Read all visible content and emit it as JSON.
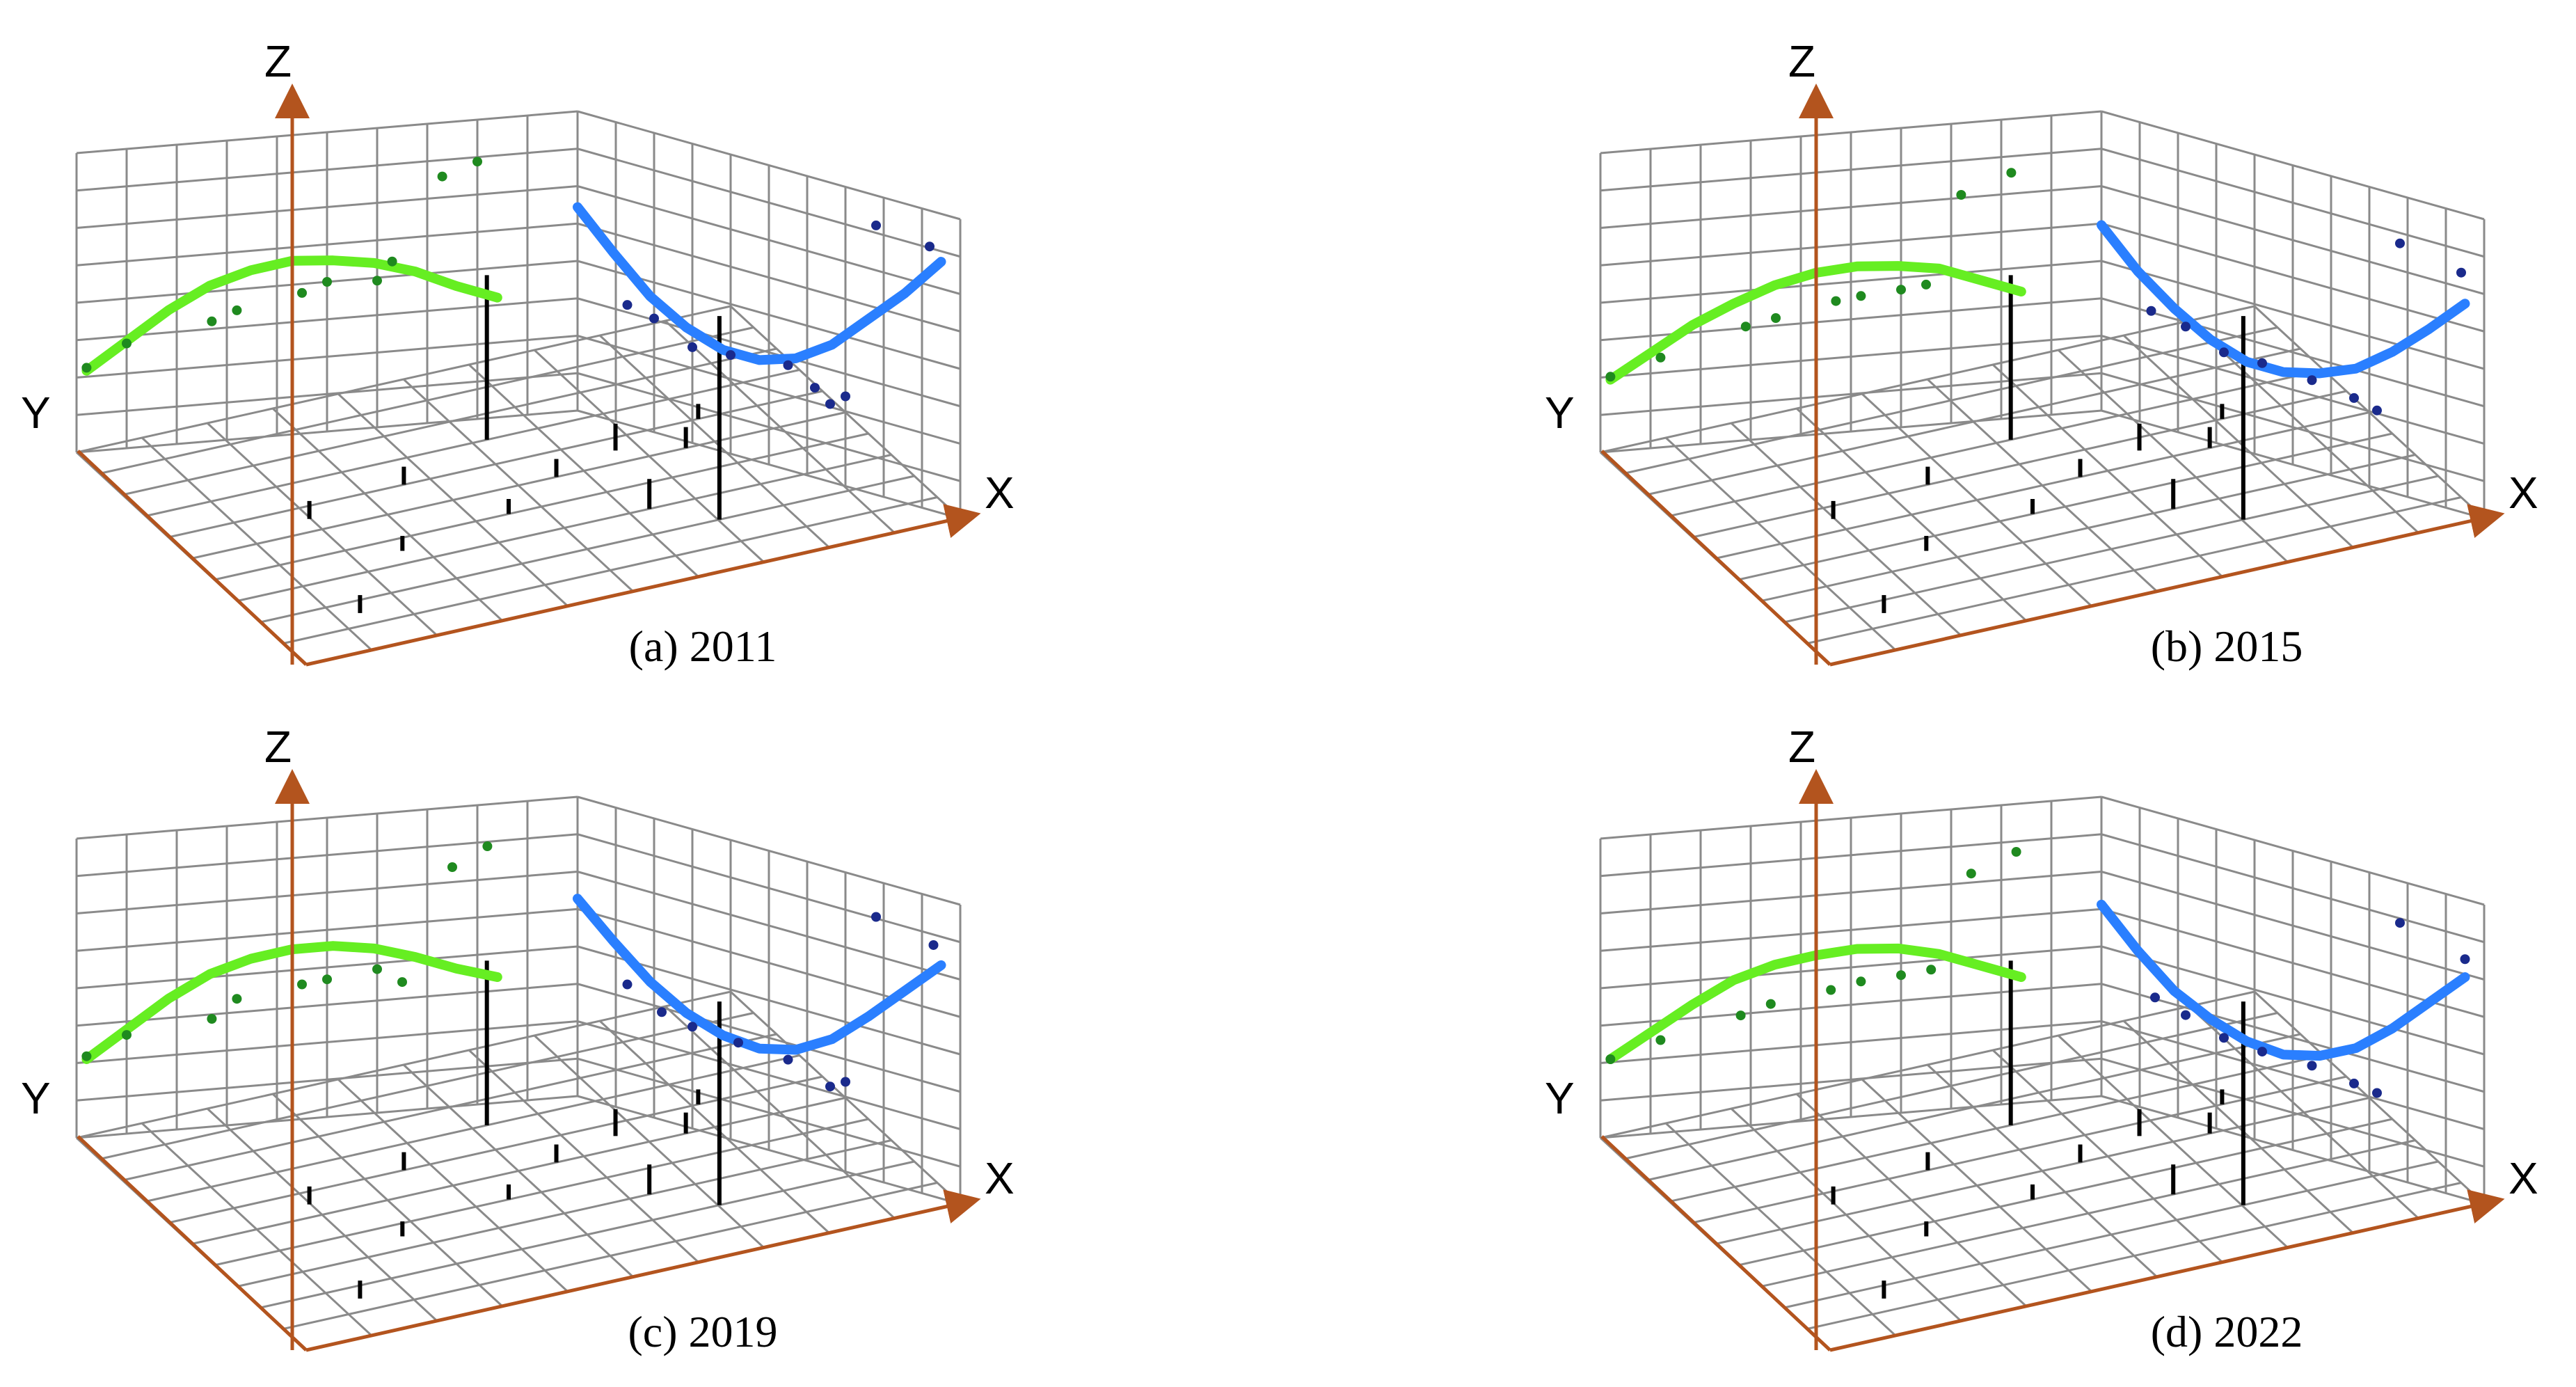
{
  "colors": {
    "grid": "#8a8a8a",
    "axis": "#b3541e",
    "green_curve": "#66ee22",
    "blue_curve": "#2a7fff",
    "green_dot": "#1f8a1f",
    "blue_dot": "#1a2a8c",
    "stem": "#000000"
  },
  "axis_labels": {
    "x": "X",
    "y": "Y",
    "z": "Z"
  },
  "chart_data": [
    {
      "type": "scatter",
      "title": "(a) 2011",
      "series": [
        {
          "values": [
            [
              0.0,
              0.27
            ],
            [
              0.1,
              0.36
            ],
            [
              0.2,
              0.45
            ],
            [
              0.3,
              0.52
            ],
            [
              0.4,
              0.56
            ],
            [
              0.5,
              0.58
            ],
            [
              0.6,
              0.57
            ],
            [
              0.7,
              0.55
            ],
            [
              0.8,
              0.51
            ],
            [
              0.9,
              0.45
            ],
            [
              1.0,
              0.4
            ]
          ]
        },
        {
          "values": [
            [
              0.0,
              0.68
            ],
            [
              0.1,
              0.56
            ],
            [
              0.2,
              0.45
            ],
            [
              0.3,
              0.38
            ],
            [
              0.4,
              0.34
            ],
            [
              0.5,
              0.34
            ],
            [
              0.6,
              0.38
            ],
            [
              0.7,
              0.46
            ],
            [
              0.8,
              0.58
            ],
            [
              0.9,
              0.7
            ],
            [
              1.0,
              0.84
            ]
          ]
        }
      ],
      "points_green": [
        [
          0.02,
          0.28
        ],
        [
          0.1,
          0.35
        ],
        [
          0.27,
          0.4
        ],
        [
          0.32,
          0.43
        ],
        [
          0.45,
          0.47
        ],
        [
          0.5,
          0.5
        ],
        [
          0.6,
          0.49
        ],
        [
          0.63,
          0.55
        ],
        [
          0.73,
          0.82
        ],
        [
          0.8,
          0.86
        ]
      ],
      "points_blue": [
        [
          0.13,
          0.4
        ],
        [
          0.2,
          0.38
        ],
        [
          0.3,
          0.32
        ],
        [
          0.4,
          0.33
        ],
        [
          0.55,
          0.35
        ],
        [
          0.62,
          0.3
        ],
        [
          0.66,
          0.26
        ],
        [
          0.7,
          0.3
        ],
        [
          0.78,
          0.9
        ],
        [
          0.92,
          0.88
        ]
      ]
    },
    {
      "type": "scatter",
      "title": "(b) 2015",
      "series": [
        {
          "values": [
            [
              0.0,
              0.24
            ],
            [
              0.1,
              0.32
            ],
            [
              0.2,
              0.4
            ],
            [
              0.3,
              0.46
            ],
            [
              0.4,
              0.51
            ],
            [
              0.5,
              0.54
            ],
            [
              0.6,
              0.55
            ],
            [
              0.7,
              0.54
            ],
            [
              0.8,
              0.52
            ],
            [
              0.9,
              0.47
            ],
            [
              1.0,
              0.42
            ]
          ]
        },
        {
          "values": [
            [
              0.0,
              0.62
            ],
            [
              0.1,
              0.5
            ],
            [
              0.2,
              0.41
            ],
            [
              0.3,
              0.34
            ],
            [
              0.4,
              0.3
            ],
            [
              0.5,
              0.3
            ],
            [
              0.6,
              0.33
            ],
            [
              0.7,
              0.38
            ],
            [
              0.8,
              0.47
            ],
            [
              0.9,
              0.58
            ],
            [
              1.0,
              0.7
            ]
          ]
        }
      ],
      "points_green": [
        [
          0.02,
          0.25
        ],
        [
          0.12,
          0.3
        ],
        [
          0.29,
          0.38
        ],
        [
          0.35,
          0.4
        ],
        [
          0.47,
          0.44
        ],
        [
          0.52,
          0.45
        ],
        [
          0.6,
          0.46
        ],
        [
          0.65,
          0.47
        ],
        [
          0.72,
          0.76
        ],
        [
          0.82,
          0.82
        ]
      ],
      "points_blue": [
        [
          0.13,
          0.38
        ],
        [
          0.22,
          0.36
        ],
        [
          0.32,
          0.31
        ],
        [
          0.42,
          0.31
        ],
        [
          0.55,
          0.3
        ],
        [
          0.66,
          0.28
        ],
        [
          0.72,
          0.26
        ],
        [
          0.78,
          0.84
        ],
        [
          0.94,
          0.8
        ]
      ]
    },
    {
      "type": "scatter",
      "title": "(c) 2019",
      "series": [
        {
          "values": [
            [
              0.0,
              0.26
            ],
            [
              0.1,
              0.35
            ],
            [
              0.2,
              0.44
            ],
            [
              0.3,
              0.51
            ],
            [
              0.4,
              0.55
            ],
            [
              0.5,
              0.57
            ],
            [
              0.6,
              0.57
            ],
            [
              0.7,
              0.55
            ],
            [
              0.8,
              0.51
            ],
            [
              0.9,
              0.46
            ],
            [
              1.0,
              0.42
            ]
          ]
        },
        {
          "values": [
            [
              0.0,
              0.66
            ],
            [
              0.1,
              0.55
            ],
            [
              0.2,
              0.45
            ],
            [
              0.3,
              0.38
            ],
            [
              0.4,
              0.34
            ],
            [
              0.5,
              0.33
            ],
            [
              0.6,
              0.36
            ],
            [
              0.7,
              0.43
            ],
            [
              0.8,
              0.54
            ],
            [
              0.9,
              0.66
            ],
            [
              1.0,
              0.78
            ]
          ]
        }
      ],
      "points_green": [
        [
          0.02,
          0.27
        ],
        [
          0.1,
          0.33
        ],
        [
          0.27,
          0.36
        ],
        [
          0.32,
          0.42
        ],
        [
          0.45,
          0.45
        ],
        [
          0.5,
          0.46
        ],
        [
          0.6,
          0.48
        ],
        [
          0.65,
          0.43
        ],
        [
          0.75,
          0.8
        ],
        [
          0.82,
          0.86
        ]
      ],
      "points_blue": [
        [
          0.13,
          0.42
        ],
        [
          0.22,
          0.36
        ],
        [
          0.3,
          0.34
        ],
        [
          0.42,
          0.33
        ],
        [
          0.55,
          0.32
        ],
        [
          0.66,
          0.27
        ],
        [
          0.7,
          0.3
        ],
        [
          0.78,
          0.88
        ],
        [
          0.93,
          0.84
        ]
      ]
    },
    {
      "type": "scatter",
      "title": "(d) 2022",
      "series": [
        {
          "values": [
            [
              0.0,
              0.26
            ],
            [
              0.1,
              0.34
            ],
            [
              0.2,
              0.42
            ],
            [
              0.3,
              0.49
            ],
            [
              0.4,
              0.53
            ],
            [
              0.5,
              0.55
            ],
            [
              0.6,
              0.56
            ],
            [
              0.7,
              0.55
            ],
            [
              0.8,
              0.52
            ],
            [
              0.9,
              0.47
            ],
            [
              1.0,
              0.42
            ]
          ]
        },
        {
          "values": [
            [
              0.0,
              0.64
            ],
            [
              0.1,
              0.52
            ],
            [
              0.2,
              0.42
            ],
            [
              0.3,
              0.36
            ],
            [
              0.4,
              0.32
            ],
            [
              0.5,
              0.31
            ],
            [
              0.6,
              0.34
            ],
            [
              0.7,
              0.4
            ],
            [
              0.8,
              0.5
            ],
            [
              0.9,
              0.62
            ],
            [
              1.0,
              0.74
            ]
          ]
        }
      ],
      "points_green": [
        [
          0.02,
          0.26
        ],
        [
          0.12,
          0.31
        ],
        [
          0.28,
          0.37
        ],
        [
          0.34,
          0.4
        ],
        [
          0.46,
          0.43
        ],
        [
          0.52,
          0.45
        ],
        [
          0.6,
          0.46
        ],
        [
          0.66,
          0.47
        ],
        [
          0.74,
          0.78
        ],
        [
          0.83,
          0.84
        ]
      ],
      "points_blue": [
        [
          0.14,
          0.38
        ],
        [
          0.22,
          0.35
        ],
        [
          0.32,
          0.31
        ],
        [
          0.42,
          0.3
        ],
        [
          0.55,
          0.3
        ],
        [
          0.66,
          0.28
        ],
        [
          0.72,
          0.27
        ],
        [
          0.78,
          0.86
        ],
        [
          0.95,
          0.8
        ]
      ]
    }
  ]
}
